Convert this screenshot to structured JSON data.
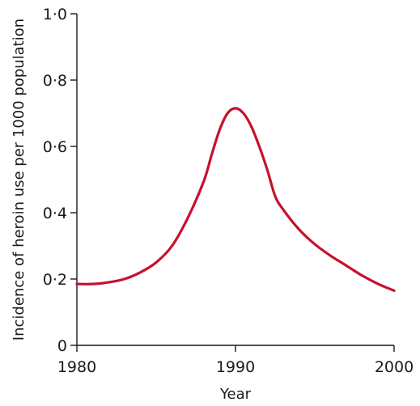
{
  "chart_data": {
    "type": "line",
    "title": "",
    "xlabel": "Year",
    "ylabel": "Incidence of heroin use per 1000 population",
    "xlim": [
      1980,
      2000
    ],
    "ylim": [
      0,
      1.0
    ],
    "x_ticks": [
      {
        "value": 1980,
        "label": "1980"
      },
      {
        "value": 1990,
        "label": "1990"
      },
      {
        "value": 2000,
        "label": "2000"
      }
    ],
    "y_ticks": [
      {
        "value": 0,
        "label": "0"
      },
      {
        "value": 0.2,
        "label": "0·2"
      },
      {
        "value": 0.4,
        "label": "0·4"
      },
      {
        "value": 0.6,
        "label": "0·6"
      },
      {
        "value": 0.8,
        "label": "0·8"
      },
      {
        "value": 1.0,
        "label": "1·0"
      }
    ],
    "grid": false,
    "series": [
      {
        "color": "#c8102e",
        "x": [
          1980,
          1981,
          1982,
          1983,
          1984,
          1985,
          1986,
          1987,
          1988,
          1988.5,
          1989,
          1989.5,
          1990,
          1990.5,
          1991,
          1991.5,
          1992,
          1992.5,
          1993,
          1994,
          1995,
          1996,
          1997,
          1998,
          1999,
          2000
        ],
        "y": [
          0.185,
          0.185,
          0.19,
          0.2,
          0.22,
          0.25,
          0.3,
          0.385,
          0.495,
          0.575,
          0.65,
          0.7,
          0.715,
          0.7,
          0.66,
          0.6,
          0.53,
          0.45,
          0.41,
          0.35,
          0.305,
          0.27,
          0.24,
          0.21,
          0.185,
          0.165
        ]
      }
    ]
  }
}
